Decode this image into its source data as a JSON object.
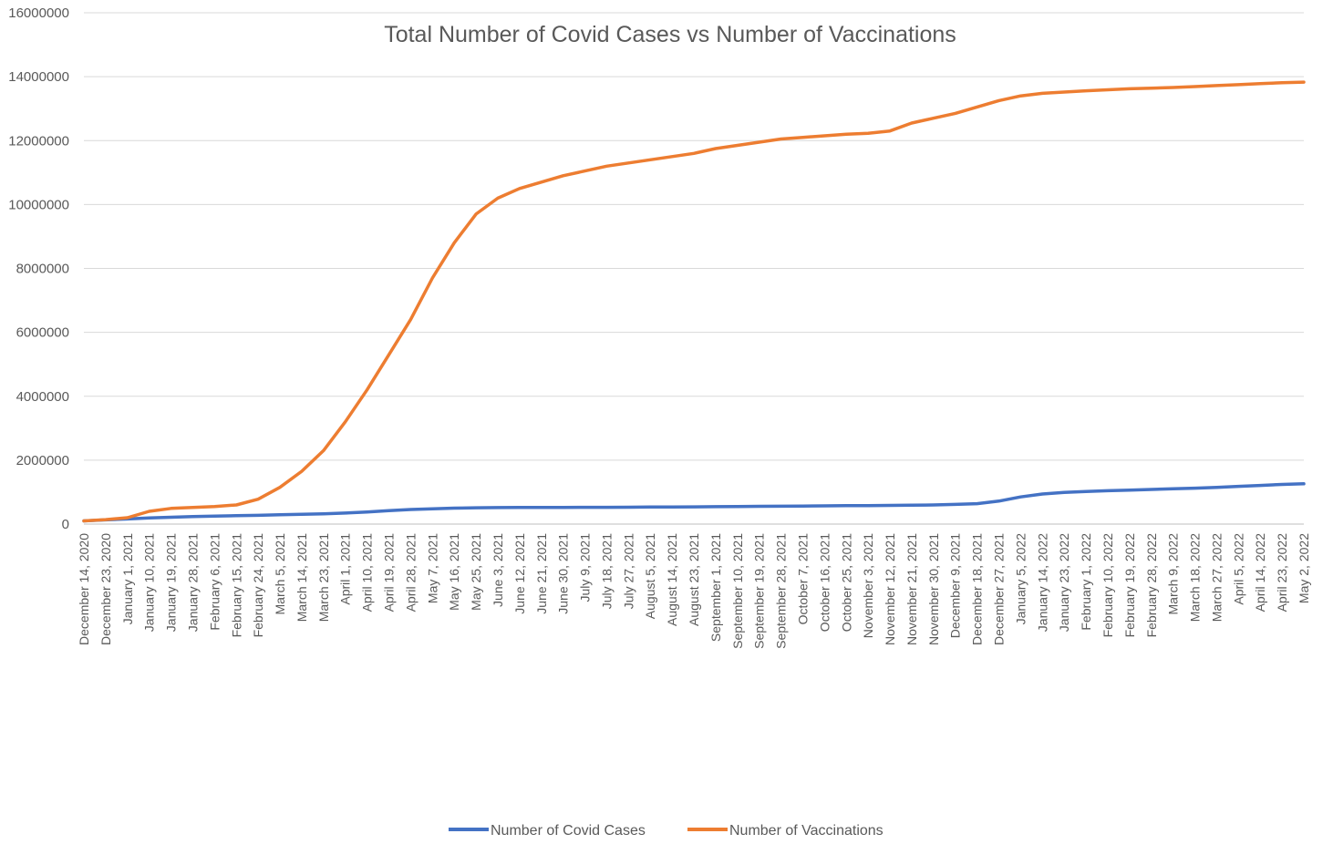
{
  "chart_data": {
    "type": "line",
    "title": "Total Number of Covid Cases vs Number of Vaccinations",
    "xlabel": "",
    "ylabel": "",
    "ylim": [
      0,
      16000000
    ],
    "yticks": [
      0,
      2000000,
      4000000,
      6000000,
      8000000,
      10000000,
      12000000,
      14000000,
      16000000
    ],
    "grid": true,
    "legend_position": "bottom",
    "categories": [
      "December 14, 2020",
      "December 23, 2020",
      "January 1, 2021",
      "January 10, 2021",
      "January 19, 2021",
      "January 28, 2021",
      "February 6, 2021",
      "February 15, 2021",
      "February 24, 2021",
      "March 5, 2021",
      "March 14, 2021",
      "March 23, 2021",
      "April 1, 2021",
      "April 10, 2021",
      "April 19, 2021",
      "April 28, 2021",
      "May 7, 2021",
      "May 16, 2021",
      "May 25, 2021",
      "June 3, 2021",
      "June 12, 2021",
      "June 21, 2021",
      "June 30, 2021",
      "July 9, 2021",
      "July 18, 2021",
      "July 27, 2021",
      "August 5, 2021",
      "August 14, 2021",
      "August 23, 2021",
      "September 1, 2021",
      "September 10, 2021",
      "September 19, 2021",
      "September 28, 2021",
      "October 7, 2021",
      "October 16, 2021",
      "October 25, 2021",
      "November 3, 2021",
      "November 12, 2021",
      "November 21, 2021",
      "November 30, 2021",
      "December 9, 2021",
      "December 18, 2021",
      "December 27, 2021",
      "January 5, 2022",
      "January 14, 2022",
      "January 23, 2022",
      "February 1, 2022",
      "February 10, 2022",
      "February 19, 2022",
      "February 28, 2022",
      "March 9, 2022",
      "March 18, 2022",
      "March 27, 2022",
      "April 5, 2022",
      "April 14, 2022",
      "April 23, 2022",
      "May 2, 2022"
    ],
    "series": [
      {
        "name": "Number of Covid Cases",
        "color": "#4472C4",
        "values": [
          100000,
          130000,
          160000,
          190000,
          215000,
          235000,
          250000,
          262000,
          275000,
          290000,
          305000,
          320000,
          345000,
          380000,
          420000,
          455000,
          480000,
          500000,
          510000,
          515000,
          518000,
          520000,
          522000,
          524000,
          526000,
          528000,
          532000,
          536000,
          540000,
          545000,
          550000,
          555000,
          560000,
          565000,
          570000,
          575000,
          580000,
          585000,
          590000,
          600000,
          615000,
          640000,
          720000,
          850000,
          940000,
          990000,
          1020000,
          1045000,
          1065000,
          1085000,
          1105000,
          1125000,
          1150000,
          1180000,
          1210000,
          1240000,
          1260000
        ]
      },
      {
        "name": "Number of Vaccinations",
        "color": "#ED7D31",
        "values": [
          100000,
          140000,
          200000,
          400000,
          490000,
          520000,
          550000,
          600000,
          780000,
          1150000,
          1650000,
          2300000,
          3200000,
          4200000,
          5300000,
          6400000,
          7700000,
          8800000,
          9700000,
          10200000,
          10500000,
          10700000,
          10900000,
          11050000,
          11200000,
          11300000,
          11400000,
          11500000,
          11600000,
          11750000,
          11850000,
          11950000,
          12050000,
          12100000,
          12150000,
          12200000,
          12230000,
          12300000,
          12550000,
          12700000,
          12850000,
          13050000,
          13250000,
          13400000,
          13480000,
          13520000,
          13560000,
          13590000,
          13620000,
          13640000,
          13660000,
          13690000,
          13720000,
          13750000,
          13780000,
          13810000,
          13830000
        ]
      }
    ]
  }
}
